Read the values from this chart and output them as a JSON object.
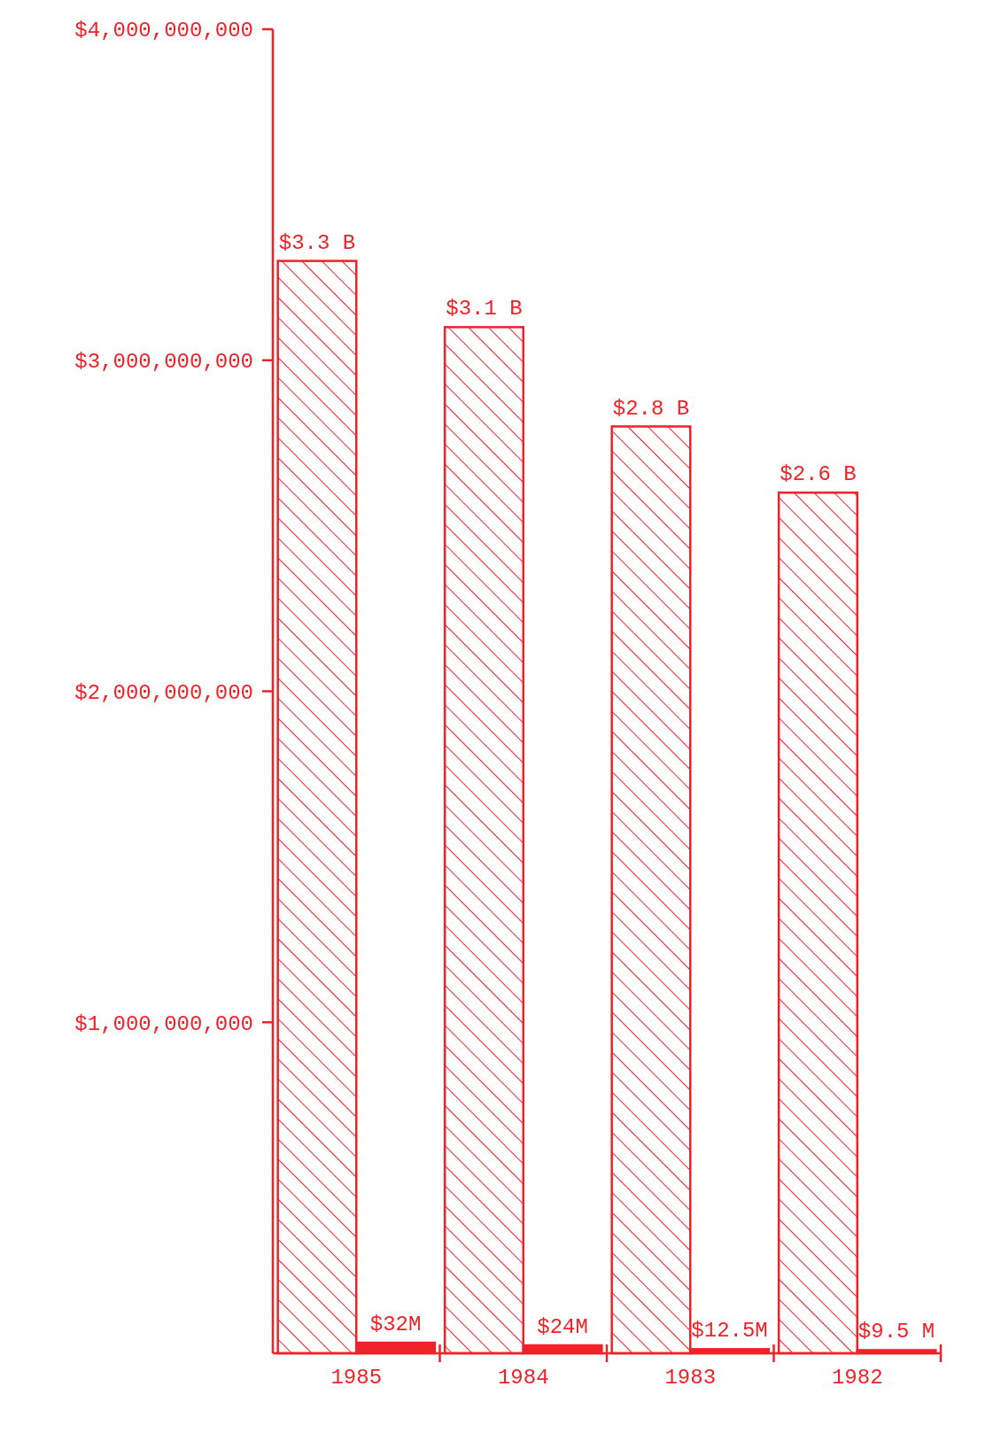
{
  "chart_data": {
    "type": "bar",
    "categories": [
      "1985",
      "1984",
      "1983",
      "1982"
    ],
    "series": [
      {
        "color": "#ee2228",
        "values": [
          3300000000,
          3100000000,
          2800000000,
          2600000000
        ],
        "value_labels": [
          "$3.3 B",
          "$3.1 B",
          "$2.8 B",
          "$2.6 B"
        ]
      },
      {
        "color": "#ee2228",
        "values": [
          32000000,
          24000000,
          12500000,
          9500000
        ],
        "value_labels": [
          "$32M",
          "$24M",
          "$12.5M",
          "$9.5 M"
        ]
      }
    ],
    "ylim": [
      0,
      4000000000
    ],
    "yticks": [
      {
        "value": 1000000000,
        "label": "$1,000,000,000"
      },
      {
        "value": 2000000000,
        "label": "$2,000,000,000"
      },
      {
        "value": 3000000000,
        "label": "$3,000,000,000"
      },
      {
        "value": 4000000000,
        "label": "$4,000,000,000"
      }
    ],
    "grid": false
  }
}
